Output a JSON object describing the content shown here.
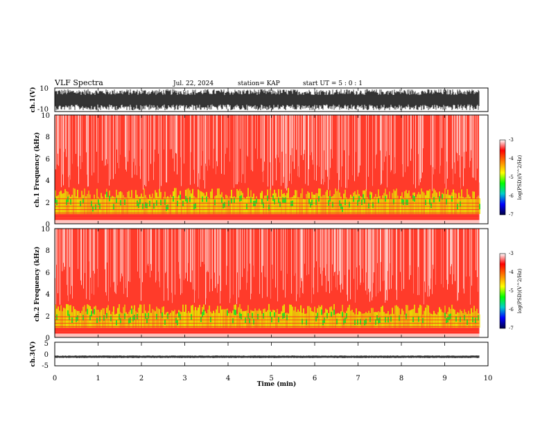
{
  "header": {
    "title": "VLF Spectra",
    "date": "Jul. 22, 2024",
    "station": "station= KAP",
    "start": "start UT =  5 : 0 : 1"
  },
  "colors": {
    "spectrogram_background": "#ff3b2a",
    "band_yellow": "#e8e800",
    "band_green": "#33dd22",
    "trace": "#000000"
  },
  "colorbar": {
    "label": "log(PSD)(V^2/Hz)",
    "ticks": [
      "-3",
      "-4",
      "-5",
      "-6",
      "-7"
    ],
    "stops": [
      "#ffffff",
      "#ff0000",
      "#ff8800",
      "#ffff00",
      "#00ff00",
      "#00cccc",
      "#0000ff",
      "#000044"
    ]
  },
  "chart_data": [
    {
      "type": "line",
      "panel": "ch1-waveform",
      "ylabel": "ch.1(V)",
      "ylim": [
        -10,
        10
      ],
      "yticks": [
        "10",
        "-10"
      ],
      "xlim": [
        0,
        10
      ],
      "data_extent_min": [
        0,
        9.8
      ],
      "description_values": {
        "typical_min": -9,
        "typical_max": 9
      }
    },
    {
      "type": "heatmap",
      "panel": "ch1-spectrogram",
      "ylabel": "ch.1 Frequency (kHz)",
      "ylim": [
        0,
        10
      ],
      "yticks": [
        "0",
        "2",
        "4",
        "6",
        "8",
        "10"
      ],
      "xlim": [
        0,
        10
      ],
      "data_extent_min": [
        0,
        9.8
      ],
      "zlim": [
        -7,
        -3
      ],
      "zlabel": "log(PSD)(V^2/Hz)",
      "band_upper_khz": 3.0,
      "hlines_khz": [
        0.4,
        0.7,
        1.0,
        1.3,
        1.6,
        1.9,
        2.3
      ]
    },
    {
      "type": "heatmap",
      "panel": "ch2-spectrogram",
      "ylabel": "ch.2 Frequency (kHz)",
      "ylim": [
        0,
        10
      ],
      "yticks": [
        "0",
        "2",
        "4",
        "6",
        "8",
        "10"
      ],
      "xlim": [
        0,
        10
      ],
      "data_extent_min": [
        0,
        9.8
      ],
      "zlim": [
        -7,
        -3
      ],
      "zlabel": "log(PSD)(V^2/Hz)",
      "band_upper_khz": 2.8,
      "hlines_khz": [
        0.4,
        0.7,
        1.0,
        1.3,
        1.6,
        1.9
      ]
    },
    {
      "type": "line",
      "panel": "ch3-waveform",
      "ylabel": "ch.3(V)",
      "ylim": [
        -5,
        5
      ],
      "yticks": [
        "5",
        "0",
        "-5"
      ],
      "xlim": [
        0,
        10
      ],
      "xlabel": "Time (min)",
      "xticks": [
        "0",
        "1",
        "2",
        "3",
        "4",
        "5",
        "6",
        "7",
        "8",
        "9",
        "10"
      ],
      "data_extent_min": [
        0,
        9.8
      ],
      "description_values": {
        "typical_min": -1.5,
        "typical_max": -0.8
      }
    }
  ]
}
